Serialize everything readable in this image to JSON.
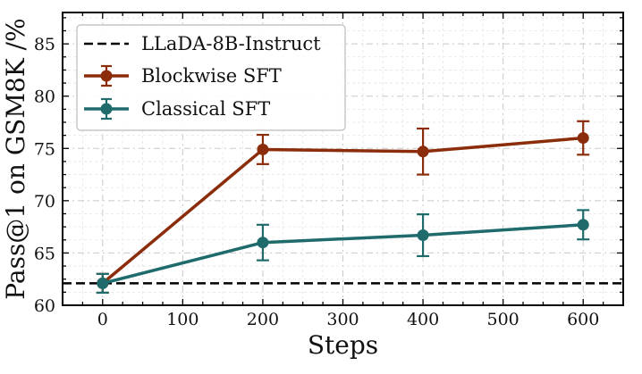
{
  "chart_data": {
    "type": "line",
    "xlabel": "Steps",
    "ylabel": "Pass@1 on GSM8K /%",
    "xlim": [
      -50,
      650
    ],
    "ylim": [
      60,
      88
    ],
    "xticks": [
      0,
      100,
      200,
      300,
      400,
      500,
      600
    ],
    "yticks": [
      60,
      65,
      70,
      75,
      80,
      85
    ],
    "grid": true,
    "legend_position": "top-left",
    "baseline": {
      "name": "LLaDA-8B-Instruct",
      "value": 62.1,
      "color": "#000000",
      "style": "dashed"
    },
    "series": [
      {
        "name": "Blockwise SFT",
        "color": "#8B2C0A",
        "x": [
          0,
          200,
          400,
          600
        ],
        "values": [
          62.1,
          74.9,
          74.7,
          76.0
        ],
        "err_low": [
          61.2,
          73.5,
          72.5,
          74.4
        ],
        "err_high": [
          63.0,
          76.3,
          76.9,
          77.6
        ]
      },
      {
        "name": "Classical SFT",
        "color": "#1F6B6B",
        "x": [
          0,
          200,
          400,
          600
        ],
        "values": [
          62.1,
          66.0,
          66.7,
          67.7
        ],
        "err_low": [
          61.2,
          64.3,
          64.7,
          66.3
        ],
        "err_high": [
          63.0,
          67.7,
          68.7,
          69.1
        ]
      }
    ]
  }
}
